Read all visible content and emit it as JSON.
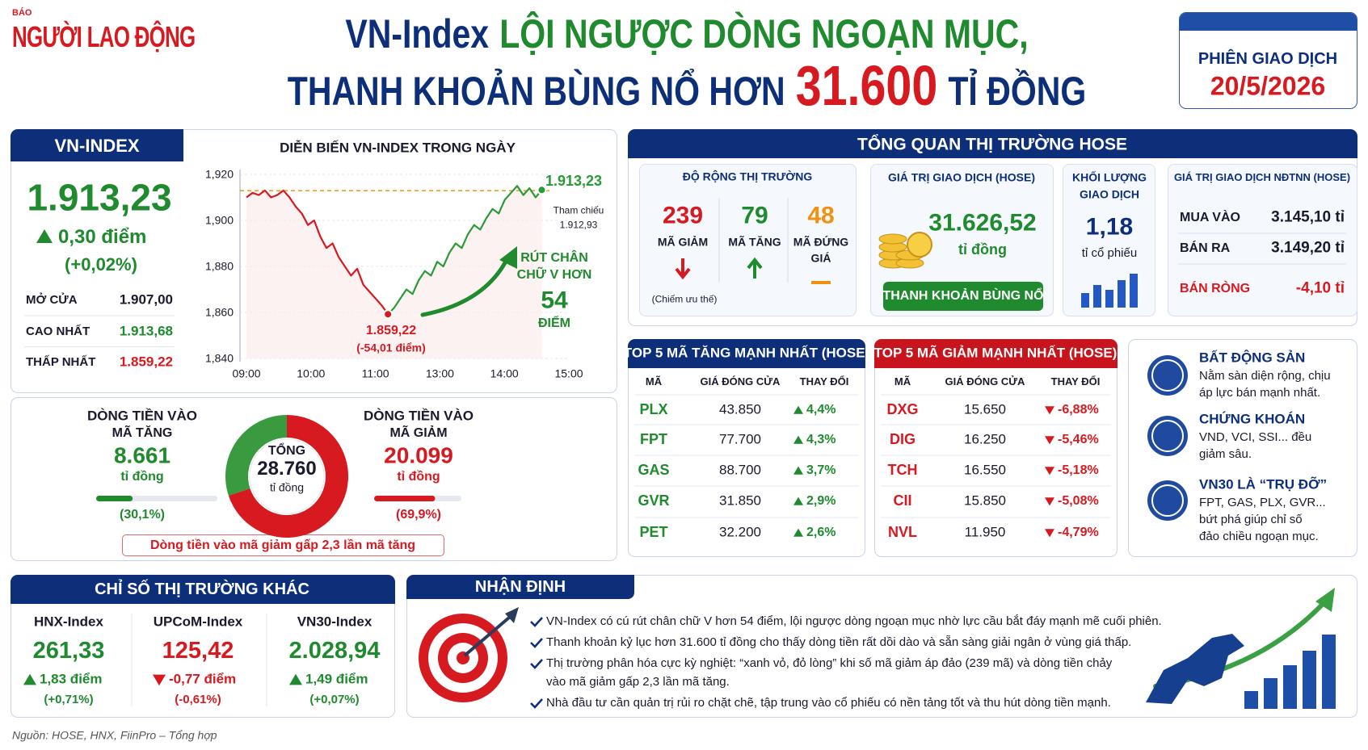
{
  "header": {
    "logo_small": "BÁO",
    "logo": "NGƯỜI LAO ĐỘNG",
    "title_line1": [
      "VN-Index",
      "LỘI NGƯỢC DÒNG NGOẠN MỤC,"
    ],
    "title_line2": [
      "THANH KHOẢN BÙNG NỔ HƠN",
      "31.600",
      "TỈ ĐỒNG"
    ],
    "session_label": "PHIÊN GIAO DỊCH",
    "session_date": "20/5/2026"
  },
  "vnindex": {
    "tab": "VN-INDEX",
    "value": "1.913,23",
    "change": "0,30 điểm",
    "change_pct": "(+0,02%)",
    "rows": [
      [
        "MỞ CỬA",
        "1.907,00"
      ],
      [
        "CAO NHẤT",
        "1.913,68"
      ],
      [
        "THẤP NHẤT",
        "1.859,22"
      ]
    ]
  },
  "intraday": {
    "type": "line",
    "title": "DIỄN BIẾN VN-INDEX TRONG NGÀY",
    "xticks": [
      "09:00",
      "10:00",
      "11:00",
      "13:00",
      "14:00",
      "15:00"
    ],
    "ylim": [
      1840,
      1920
    ],
    "yticks": [
      {
        "value": 1840,
        "label": "1,840"
      },
      {
        "value": 1860,
        "label": "1,860"
      },
      {
        "value": 1880,
        "label": "1,880"
      },
      {
        "value": 1900,
        "label": "1,900"
      },
      {
        "value": 1920,
        "label": "1,920"
      }
    ],
    "grid": true,
    "values": [
      1910,
      1912,
      1911,
      1913,
      1910,
      1911,
      1913,
      1910,
      1906,
      1903,
      1898,
      1900,
      1893,
      1888,
      1890,
      1884,
      1880,
      1876,
      1879,
      1872,
      1869,
      1866,
      1863,
      1859.22,
      1862,
      1866,
      1870,
      1868,
      1874,
      1878,
      1876,
      1882,
      1880,
      1886,
      1890,
      1888,
      1894,
      1898,
      1896,
      1901,
      1905,
      1903,
      1909,
      1912,
      1915,
      1911,
      1914,
      1910,
      1913.23
    ],
    "colors": {
      "down": "#d71920",
      "up": "#2a9a36",
      "reference": "#f0a020"
    },
    "reference": {
      "label": "Tham chiếu",
      "value": 1912.93,
      "value_label": "1.912,93"
    },
    "close_label": "1.913,23",
    "low_label": "1.859,22",
    "low_change": "(-54,01 điểm)",
    "annotation": [
      "RÚT CHÂN",
      "CHỮ V HƠN",
      "54",
      "ĐIỂM"
    ]
  },
  "flows": {
    "in_up": {
      "title": [
        "DÒNG TIỀN VÀO",
        "MÃ TĂNG"
      ],
      "amount": "8.661",
      "unit": "tỉ đồng"
    },
    "in_down": {
      "title": [
        "DÒNG TIỀN VÀO",
        "MÃ GIẢM"
      ],
      "amount": "20.099",
      "unit": "tỉ đồng"
    },
    "total": {
      "label": "TỔNG",
      "amount": "28.760",
      "unit": "tỉ đồng"
    },
    "donut": {
      "type": "pie",
      "values": [
        30.1,
        69.9
      ],
      "value_labels": [
        "(30,1%)",
        "(69,9%)"
      ],
      "colors": [
        "#3a9a40",
        "#d71920"
      ]
    },
    "note": "Dòng tiền vào mã giảm gấp 2,3 lần mã tăng"
  },
  "hose": {
    "title": "TỔNG QUAN THỊ TRƯỜNG HOSE",
    "breadth": {
      "title": "ĐỘ RỘNG THỊ TRƯỜNG",
      "items": [
        {
          "value": "239",
          "label": [
            "MÃ GIẢM"
          ]
        },
        {
          "value": "79",
          "label": [
            "MÃ TĂNG"
          ]
        },
        {
          "value": "48",
          "label": [
            "MÃ ĐỨNG",
            "GIÁ"
          ]
        }
      ],
      "note": "(Chiếm ưu thế)"
    },
    "value": {
      "title": "GIÁ TRỊ GIAO DỊCH (HOSE)",
      "amount": "31.626,52",
      "unit": "tỉ đồng",
      "badge": "THANH KHOẢN BÙNG NỔ"
    },
    "volume": {
      "title": [
        "KHỐI LƯỢNG",
        "GIAO DỊCH"
      ],
      "amount": "1,18",
      "unit": "tỉ cổ phiếu"
    },
    "foreign": {
      "title": "GIÁ TRỊ GIAO DỊCH NĐTNN (HOSE)",
      "rows": [
        [
          "MUA VÀO",
          "3.145,10 tỉ"
        ],
        [
          "BÁN RA",
          "3.149,20 tỉ"
        ],
        [
          "BÁN RÒNG",
          "-4,10 tỉ"
        ]
      ]
    }
  },
  "gainers": {
    "title": "TOP 5 MÃ TĂNG MẠNH NHẤT (HOSE)",
    "columns": [
      "MÃ",
      "GIÁ ĐÓNG CỬA",
      "THAY ĐỔI"
    ],
    "rows": [
      [
        "PLX",
        "43.850",
        "4,4%"
      ],
      [
        "FPT",
        "77.700",
        "4,3%"
      ],
      [
        "GAS",
        "88.700",
        "3,7%"
      ],
      [
        "GVR",
        "31.850",
        "2,9%"
      ],
      [
        "PET",
        "32.200",
        "2,6%"
      ]
    ]
  },
  "losers": {
    "title": "TOP 5 MÃ GIẢM MẠNH NHẤT (HOSE)",
    "columns": [
      "MÃ",
      "GIÁ ĐÓNG CỬA",
      "THAY ĐỔI"
    ],
    "rows": [
      [
        "DXG",
        "15.650",
        "-6,88%"
      ],
      [
        "DIG",
        "16.250",
        "-5,46%"
      ],
      [
        "TCH",
        "16.550",
        "-5,18%"
      ],
      [
        "CII",
        "15.850",
        "-5,08%"
      ],
      [
        "NVL",
        "11.950",
        "-4,79%"
      ]
    ]
  },
  "sectors": [
    {
      "title": "BẤT ĐỘNG SẢN",
      "text": [
        "Nằm sàn diện rộng, chịu",
        "áp lực bán mạnh nhất."
      ]
    },
    {
      "title": "CHỨNG KHOÁN",
      "text": [
        "VND, VCI, SSI... đều",
        "giảm sâu."
      ]
    },
    {
      "title": "VN30 LÀ “TRỤ ĐỠ”",
      "text": [
        "FPT, GAS, PLX, GVR...",
        "bứt phá giúp chỉ số",
        "đảo chiều ngoạn mục."
      ]
    }
  ],
  "other": {
    "title": "CHỈ SỐ THỊ TRƯỜNG KHÁC",
    "items": [
      {
        "name": "HNX-Index",
        "value": "261,33",
        "change": "1,83 điểm",
        "pct": "(+0,71%)",
        "dir": "up"
      },
      {
        "name": "UPCoM-Index",
        "value": "125,42",
        "change": "-0,77 điểm",
        "pct": "(-0,61%)",
        "dir": "down"
      },
      {
        "name": "VN30-Index",
        "value": "2.028,94",
        "change": "1,49 điểm",
        "pct": "(+0,07%)",
        "dir": "up"
      }
    ]
  },
  "outlook": {
    "title": "NHẬN ĐỊNH",
    "points": [
      [
        "VN-Index có cú rút chân chữ V hơn 54 điểm, lội ngược dòng ngoạn mục nhờ lực cầu bắt đáy mạnh mẽ cuối phiên."
      ],
      [
        "Thanh khoản kỷ lục hơn 31.600 tỉ đồng cho thấy dòng tiền rất dồi dào và sẵn sàng giải ngân ở vùng giá thấp."
      ],
      [
        "Thị trường phân hóa cực kỳ nghiệt: “xanh vỏ, đỏ lòng” khi số mã giảm áp đảo (239 mã) và dòng tiền chảy",
        "vào mã giảm gấp 2,3 lần mã tăng."
      ],
      [
        "Nhà đầu tư cần quản trị rủi ro chặt chẽ, tập trung vào cổ phiếu có nền tảng tốt và thu hút dòng tiền mạnh."
      ]
    ]
  },
  "source": "Nguồn: HOSE, HNX, FiinPro – Tổng hợp"
}
